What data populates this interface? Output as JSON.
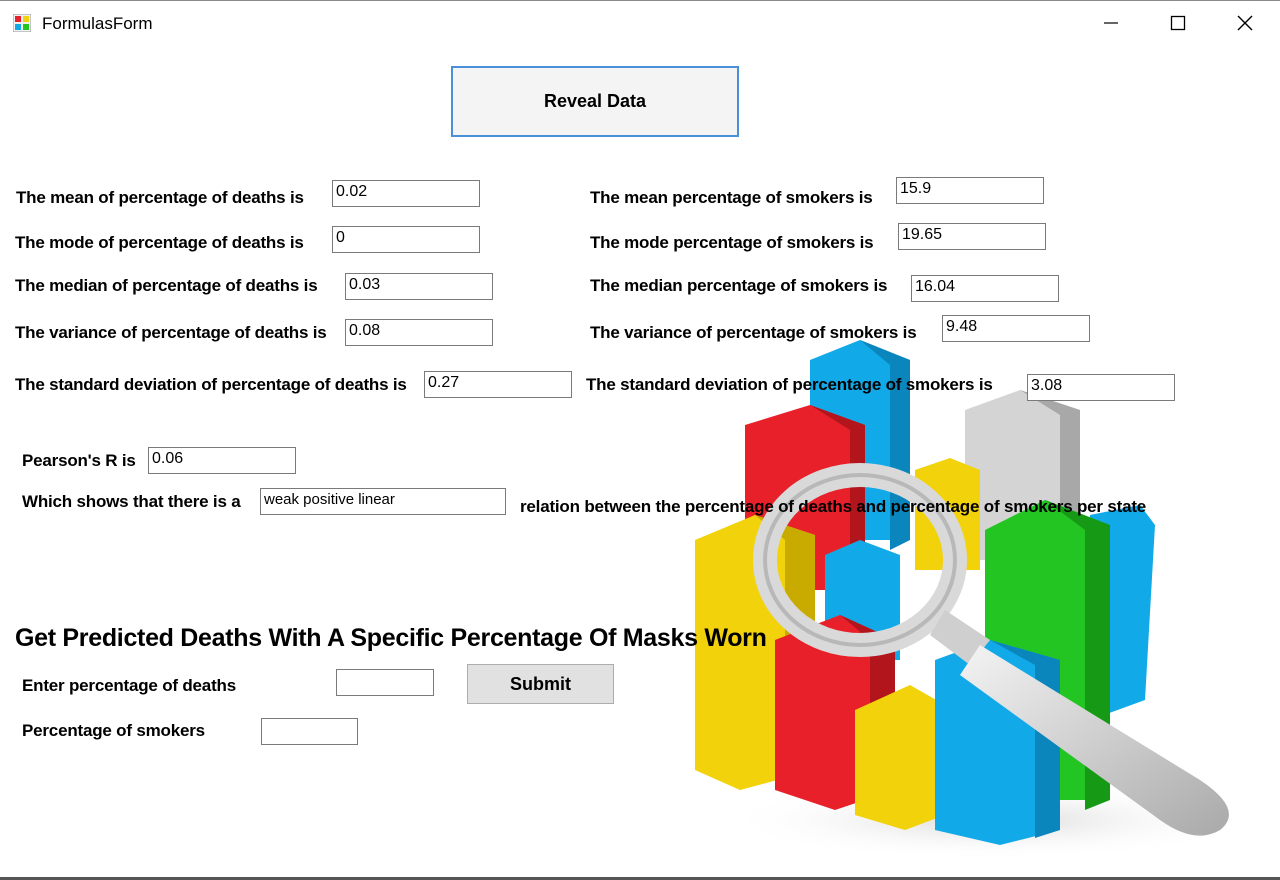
{
  "window": {
    "title": "FormulasForm"
  },
  "reveal_button": "Reveal Data",
  "deaths": {
    "mean_label": "The mean of percentage of deaths is",
    "mean_value": "0.02",
    "mode_label": "The mode of percentage of deaths is",
    "mode_value": "0",
    "median_label": "The median of percentage of deaths is",
    "median_value": "0.03",
    "variance_label": "The variance of percentage of deaths is",
    "variance_value": "0.08",
    "std_label": "The standard deviation of percentage of deaths is",
    "std_value": "0.27"
  },
  "smokers": {
    "mean_label": "The mean percentage of smokers is",
    "mean_value": "15.9",
    "mode_label": "The mode percentage of smokers is",
    "mode_value": "19.65",
    "median_label": "The median percentage of smokers is",
    "median_value": "16.04",
    "variance_label": "The variance of percentage of smokers is",
    "variance_value": "9.48",
    "std_label": "The standard deviation of percentage of smokers is",
    "std_value": "3.08"
  },
  "pearson": {
    "label": "Pearson's R is",
    "value": "0.06",
    "shows_label": "Which shows that there is a",
    "relation_value": "weak positive linear",
    "relation_suffix": "relation between the percentage of deaths and percentage of smokers per state"
  },
  "predict": {
    "heading": "Get Predicted Deaths With A Specific Percentage Of Masks Worn",
    "deaths_label": "Enter percentage of deaths",
    "deaths_value": "",
    "smokers_label": "Percentage of smokers",
    "smokers_value": "",
    "submit": "Submit"
  },
  "colors": {
    "reveal_border": "#4a90d9",
    "bar_red": "#e8202a",
    "bar_blue": "#12a9e8",
    "bar_yellow": "#f2d20a",
    "bar_green": "#22c522",
    "bar_grey": "#c9c9c9"
  }
}
